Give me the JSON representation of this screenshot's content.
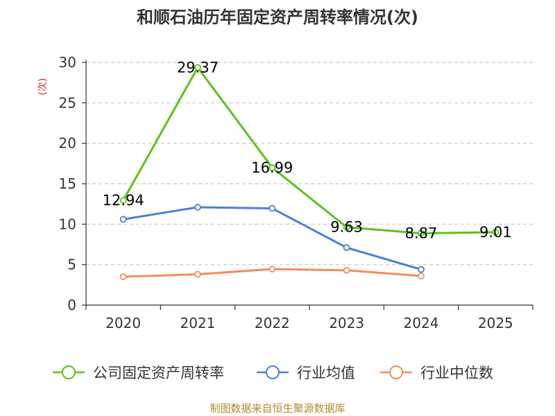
{
  "chart_data": {
    "type": "line",
    "title": "和顺石油历年固定资产周转率情况(次)",
    "ylabel": "(次)",
    "xlabel": "",
    "categories": [
      "2020",
      "2021",
      "2022",
      "2023",
      "2024",
      "2025"
    ],
    "yticks": [
      "0",
      "5",
      "10",
      "15",
      "20",
      "25",
      "30"
    ],
    "ylim": [
      0,
      30
    ],
    "grid": "horizontal-dashed",
    "legend_position": "bottom",
    "series": [
      {
        "name": "公司固定资产周转率",
        "color": "#5bc219",
        "values": [
          12.94,
          29.37,
          16.99,
          9.63,
          8.87,
          9.01
        ],
        "labels": [
          "12.94",
          "29.37",
          "16.99",
          "9.63",
          "8.87",
          "9.01"
        ]
      },
      {
        "name": "行业均值",
        "color": "#4a7fd8",
        "values": [
          10.6,
          12.1,
          11.95,
          7.1,
          4.4,
          null
        ]
      },
      {
        "name": "行业中位数",
        "color": "#f48c5e",
        "values": [
          3.5,
          3.8,
          4.45,
          4.3,
          3.6,
          null
        ]
      }
    ],
    "source": "制图数据来自恒生聚源数据库"
  }
}
